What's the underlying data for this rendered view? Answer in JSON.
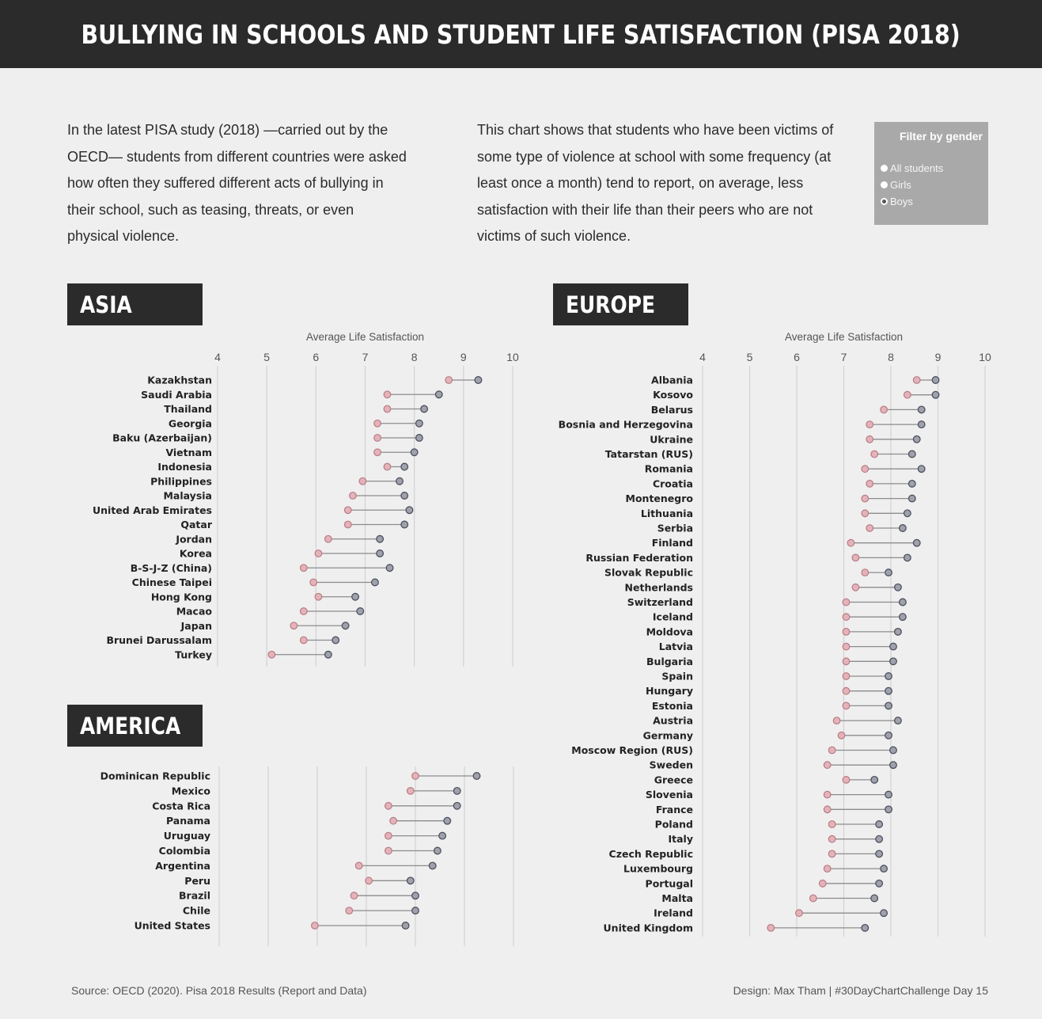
{
  "header": {
    "title": "BULLYING IN SCHOOLS AND STUDENT LIFE SATISFACTION (PISA 2018)"
  },
  "intro": {
    "left": "In the latest PISA study (2018) —carried out by the OECD— students from different countries were asked how often they suffered different acts of bullying in their school, such as teasing, threats, or even physical violence.",
    "right": "This chart shows that students who have been victims of some type of violence at school with some frequency (at least once a month) tend to report, on average, less satisfaction with their life than their peers who are not victims of such violence."
  },
  "filter": {
    "title": "Filter by gender",
    "options": [
      "All students",
      "Girls",
      "Boys"
    ],
    "selected": "Boys"
  },
  "colors": {
    "victim": "#e4b3b9",
    "victim_stroke": "#b87a84",
    "non_victim": "#9fa2ab",
    "non_victim_stroke": "#4d5060",
    "line": "#8c8c8c",
    "grid": "#d2d2d2",
    "label_bg": "#2b2b2b"
  },
  "footer": {
    "source": "Source: OECD (2020). Pisa 2018 Results (Report and Data)",
    "credit": "Design: Max Tham | #30DayChartChallenge Day 15"
  },
  "chart_data": [
    {
      "type": "dumbbell",
      "region": "ASIA",
      "axis_label": "Average Life Satisfaction",
      "xlim": [
        4,
        10
      ],
      "ticks": [
        4,
        5,
        6,
        7,
        8,
        9,
        10
      ],
      "countries": [
        {
          "name": "Kazakhstan",
          "victim": 8.7,
          "non_victim": 9.3
        },
        {
          "name": "Saudi Arabia",
          "victim": 7.45,
          "non_victim": 8.5
        },
        {
          "name": "Thailand",
          "victim": 7.45,
          "non_victim": 8.2
        },
        {
          "name": "Georgia",
          "victim": 7.25,
          "non_victim": 8.1
        },
        {
          "name": "Baku (Azerbaijan)",
          "victim": 7.25,
          "non_victim": 8.1
        },
        {
          "name": "Vietnam",
          "victim": 7.25,
          "non_victim": 8.0
        },
        {
          "name": "Indonesia",
          "victim": 7.45,
          "non_victim": 7.8
        },
        {
          "name": "Philippines",
          "victim": 6.95,
          "non_victim": 7.7
        },
        {
          "name": "Malaysia",
          "victim": 6.75,
          "non_victim": 7.8
        },
        {
          "name": "United Arab Emirates",
          "victim": 6.65,
          "non_victim": 7.9
        },
        {
          "name": "Qatar",
          "victim": 6.65,
          "non_victim": 7.8
        },
        {
          "name": "Jordan",
          "victim": 6.25,
          "non_victim": 7.3
        },
        {
          "name": "Korea",
          "victim": 6.05,
          "non_victim": 7.3
        },
        {
          "name": "B-S-J-Z (China)",
          "victim": 5.75,
          "non_victim": 7.5
        },
        {
          "name": "Chinese Taipei",
          "victim": 5.95,
          "non_victim": 7.2
        },
        {
          "name": "Hong Kong",
          "victim": 6.05,
          "non_victim": 6.8
        },
        {
          "name": "Macao",
          "victim": 5.75,
          "non_victim": 6.9
        },
        {
          "name": "Japan",
          "victim": 5.55,
          "non_victim": 6.6
        },
        {
          "name": "Brunei Darussalam",
          "victim": 5.75,
          "non_victim": 6.4
        },
        {
          "name": "Turkey",
          "victim": 5.1,
          "non_victim": 6.25
        }
      ]
    },
    {
      "type": "dumbbell",
      "region": "AMERICA",
      "axis_label": "",
      "xlim": [
        4,
        10
      ],
      "ticks": [],
      "countries": [
        {
          "name": "Dominican Republic",
          "victim": 8.0,
          "non_victim": 9.25
        },
        {
          "name": "Mexico",
          "victim": 7.9,
          "non_victim": 8.85
        },
        {
          "name": "Costa Rica",
          "victim": 7.45,
          "non_victim": 8.85
        },
        {
          "name": "Panama",
          "victim": 7.55,
          "non_victim": 8.65
        },
        {
          "name": "Uruguay",
          "victim": 7.45,
          "non_victim": 8.55
        },
        {
          "name": "Colombia",
          "victim": 7.45,
          "non_victim": 8.45
        },
        {
          "name": "Argentina",
          "victim": 6.85,
          "non_victim": 8.35
        },
        {
          "name": "Peru",
          "victim": 7.05,
          "non_victim": 7.9
        },
        {
          "name": "Brazil",
          "victim": 6.75,
          "non_victim": 8.0
        },
        {
          "name": "Chile",
          "victim": 6.65,
          "non_victim": 8.0
        },
        {
          "name": "United States",
          "victim": 5.95,
          "non_victim": 7.8
        }
      ]
    },
    {
      "type": "dumbbell",
      "region": "EUROPE",
      "axis_label": "Average Life Satisfaction",
      "xlim": [
        4,
        10
      ],
      "ticks": [
        4,
        5,
        6,
        7,
        8,
        9,
        10
      ],
      "countries": [
        {
          "name": "Albania",
          "victim": 8.55,
          "non_victim": 8.95
        },
        {
          "name": "Kosovo",
          "victim": 8.35,
          "non_victim": 8.95
        },
        {
          "name": "Belarus",
          "victim": 7.85,
          "non_victim": 8.65
        },
        {
          "name": "Bosnia and Herzegovina",
          "victim": 7.55,
          "non_victim": 8.65
        },
        {
          "name": "Ukraine",
          "victim": 7.55,
          "non_victim": 8.55
        },
        {
          "name": "Tatarstan (RUS)",
          "victim": 7.65,
          "non_victim": 8.45
        },
        {
          "name": "Romania",
          "victim": 7.45,
          "non_victim": 8.65
        },
        {
          "name": "Croatia",
          "victim": 7.55,
          "non_victim": 8.45
        },
        {
          "name": "Montenegro",
          "victim": 7.45,
          "non_victim": 8.45
        },
        {
          "name": "Lithuania",
          "victim": 7.45,
          "non_victim": 8.35
        },
        {
          "name": "Serbia",
          "victim": 7.55,
          "non_victim": 8.25
        },
        {
          "name": "Finland",
          "victim": 7.15,
          "non_victim": 8.55
        },
        {
          "name": "Russian Federation",
          "victim": 7.25,
          "non_victim": 8.35
        },
        {
          "name": "Slovak Republic",
          "victim": 7.45,
          "non_victim": 7.95
        },
        {
          "name": "Netherlands",
          "victim": 7.25,
          "non_victim": 8.15
        },
        {
          "name": "Switzerland",
          "victim": 7.05,
          "non_victim": 8.25
        },
        {
          "name": "Iceland",
          "victim": 7.05,
          "non_victim": 8.25
        },
        {
          "name": "Moldova",
          "victim": 7.05,
          "non_victim": 8.15
        },
        {
          "name": "Latvia",
          "victim": 7.05,
          "non_victim": 8.05
        },
        {
          "name": "Bulgaria",
          "victim": 7.05,
          "non_victim": 8.05
        },
        {
          "name": "Spain",
          "victim": 7.05,
          "non_victim": 7.95
        },
        {
          "name": "Hungary",
          "victim": 7.05,
          "non_victim": 7.95
        },
        {
          "name": "Estonia",
          "victim": 7.05,
          "non_victim": 7.95
        },
        {
          "name": "Austria",
          "victim": 6.85,
          "non_victim": 8.15
        },
        {
          "name": "Germany",
          "victim": 6.95,
          "non_victim": 7.95
        },
        {
          "name": "Moscow Region (RUS)",
          "victim": 6.75,
          "non_victim": 8.05
        },
        {
          "name": "Sweden",
          "victim": 6.65,
          "non_victim": 8.05
        },
        {
          "name": "Greece",
          "victim": 7.05,
          "non_victim": 7.65
        },
        {
          "name": "Slovenia",
          "victim": 6.65,
          "non_victim": 7.95
        },
        {
          "name": "France",
          "victim": 6.65,
          "non_victim": 7.95
        },
        {
          "name": "Poland",
          "victim": 6.75,
          "non_victim": 7.75
        },
        {
          "name": "Italy",
          "victim": 6.75,
          "non_victim": 7.75
        },
        {
          "name": "Czech Republic",
          "victim": 6.75,
          "non_victim": 7.75
        },
        {
          "name": "Luxembourg",
          "victim": 6.65,
          "non_victim": 7.85
        },
        {
          "name": "Portugal",
          "victim": 6.55,
          "non_victim": 7.75
        },
        {
          "name": "Malta",
          "victim": 6.35,
          "non_victim": 7.65
        },
        {
          "name": "Ireland",
          "victim": 6.05,
          "non_victim": 7.85
        },
        {
          "name": "United Kingdom",
          "victim": 5.45,
          "non_victim": 7.45
        }
      ]
    }
  ]
}
